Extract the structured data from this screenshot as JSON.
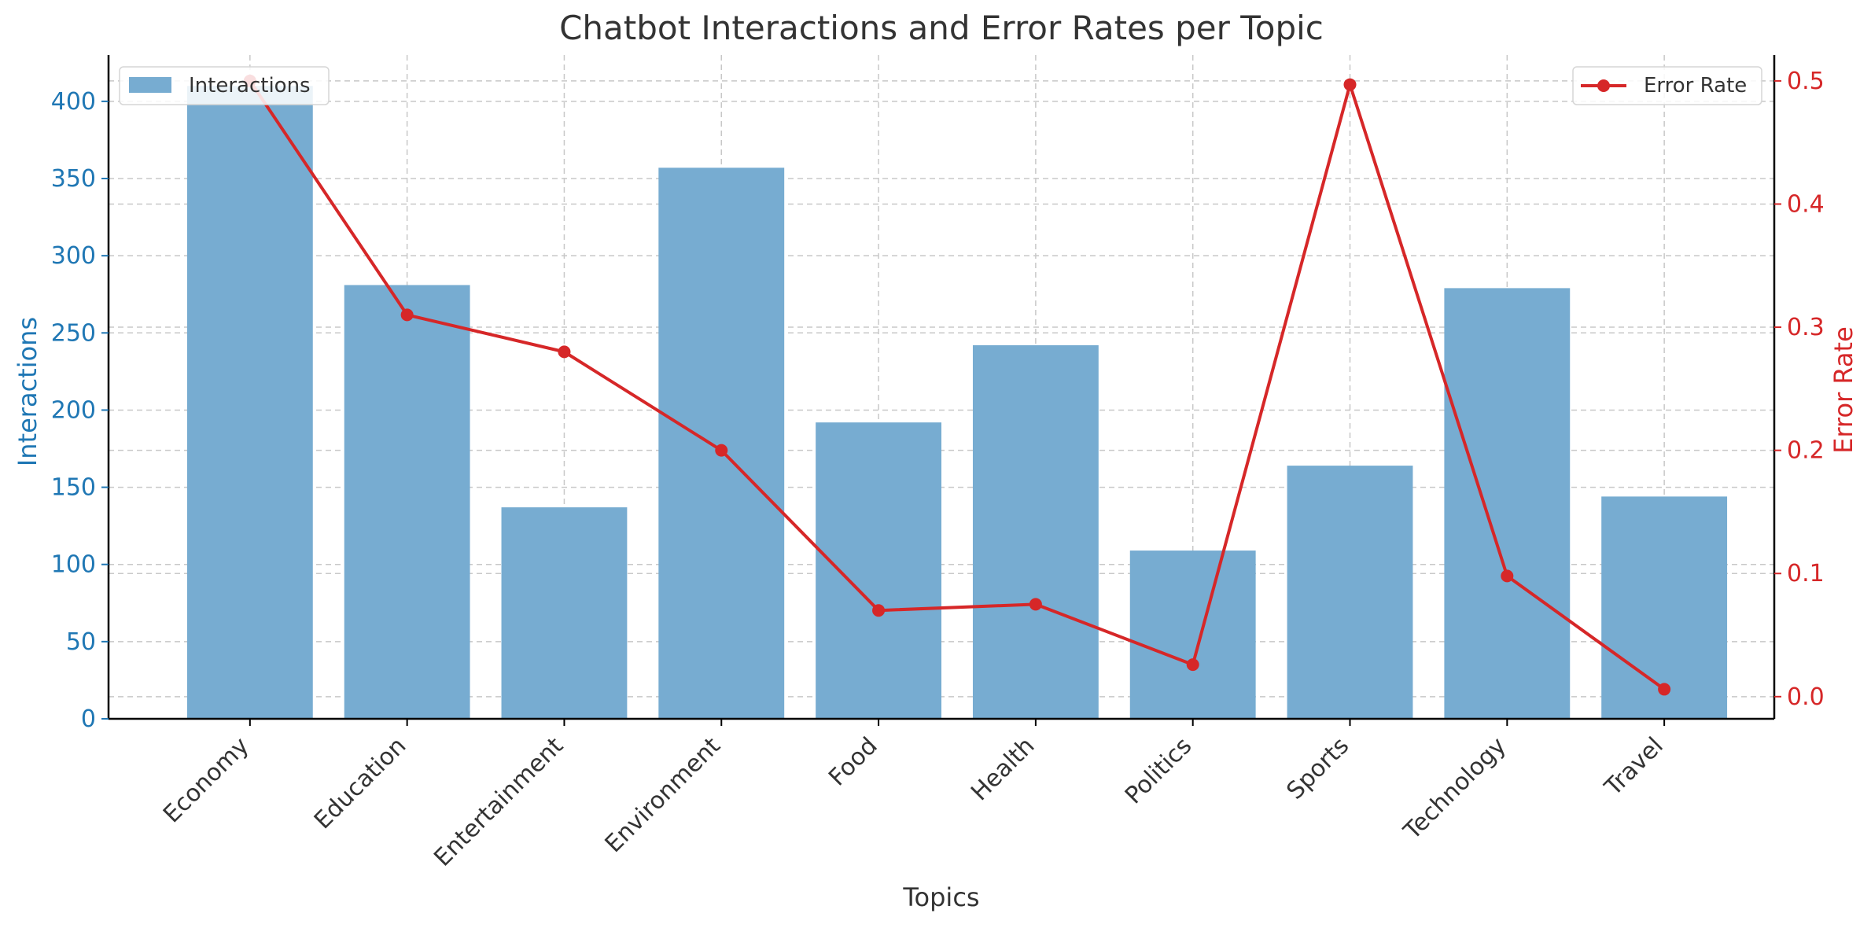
{
  "chart_data": {
    "type": "bar",
    "title": "Chatbot Interactions and Error Rates per Topic",
    "xlabel": "Topics",
    "ylabel": "Interactions",
    "y2label": "Error Rate",
    "categories": [
      "Economy",
      "Education",
      "Entertainment",
      "Environment",
      "Food",
      "Health",
      "Politics",
      "Sports",
      "Technology",
      "Travel"
    ],
    "ylim": [
      0,
      430
    ],
    "y2lim": [
      -0.018,
      0.521
    ],
    "yticks": [
      0,
      50,
      100,
      150,
      200,
      250,
      300,
      350,
      400
    ],
    "y2ticks": [
      0.0,
      0.1,
      0.2,
      0.3,
      0.4,
      0.5
    ],
    "y2tick_labels": [
      "0.0",
      "0.1",
      "0.2",
      "0.3",
      "0.4",
      "0.5"
    ],
    "grid": true,
    "series": [
      {
        "name": "Interactions",
        "kind": "bar",
        "axis": "left",
        "color": "#77acd1",
        "values": [
          410,
          281,
          137,
          357,
          192,
          242,
          109,
          164,
          279,
          144
        ]
      },
      {
        "name": "Error Rate",
        "kind": "line",
        "axis": "right",
        "color": "#d62728",
        "values": [
          0.5,
          0.31,
          0.28,
          0.2,
          0.07,
          0.075,
          0.026,
          0.497,
          0.098,
          0.006
        ]
      }
    ],
    "legend_left": {
      "position": "top-left",
      "label": "Interactions"
    },
    "legend_right": {
      "position": "top-right",
      "label": "Error Rate"
    },
    "colors": {
      "left_axis": "#1f77b4",
      "right_axis": "#d62728",
      "text": "#333333"
    }
  }
}
